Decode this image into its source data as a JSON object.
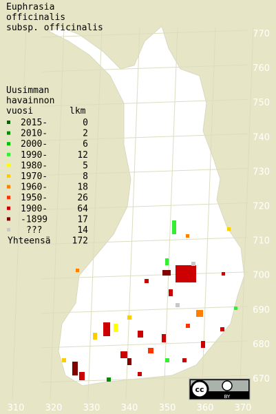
{
  "title": [
    "Euphrasia",
    "officinalis",
    "subsp. officinalis"
  ],
  "legend": {
    "title": [
      "Uusimman",
      "havainnon",
      "vuosi"
    ],
    "count_header": "lkm",
    "rows": [
      {
        "label": "2015-",
        "count": 0,
        "color": "#006400"
      },
      {
        "label": "2010-",
        "count": 2,
        "color": "#008c00"
      },
      {
        "label": "2000-",
        "count": 6,
        "color": "#00c000"
      },
      {
        "label": "1990-",
        "count": 12,
        "color": "#33ee33"
      },
      {
        "label": "1980-",
        "count": 5,
        "color": "#ffff00"
      },
      {
        "label": "1970-",
        "count": 8,
        "color": "#ffcc00"
      },
      {
        "label": "1960-",
        "count": 18,
        "color": "#ff8000"
      },
      {
        "label": "1950-",
        "count": 26,
        "color": "#ff3300"
      },
      {
        "label": "1900-",
        "count": 64,
        "color": "#cc0000"
      },
      {
        "label": "-1899",
        "count": 17,
        "color": "#800000"
      },
      {
        "label": "???",
        "count": 14,
        "color": "#c8c8c8"
      }
    ],
    "total": {
      "label": "Yhteensä",
      "count": 172
    }
  },
  "grid": {
    "y_ticks": [
      770,
      760,
      750,
      740,
      730,
      720,
      710,
      700,
      690,
      680,
      670
    ],
    "x_ticks": [
      310,
      320,
      330,
      340,
      350,
      360,
      370
    ]
  },
  "license": {
    "cc": "cc",
    "by": "BY"
  }
}
